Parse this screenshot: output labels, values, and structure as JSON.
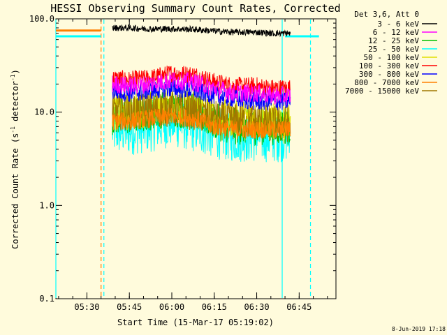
{
  "chart_data": {
    "type": "line",
    "title": "HESSI Observing Summary Count Rates, Corrected",
    "xlabel": "Start Time (15-Mar-17 05:19:02)",
    "ylabel_prefix": "Corrected Count Rate (s",
    "ylabel_exp": "-1",
    "ylabel_suffix": " detector",
    "ylabel_close": ")",
    "y_scale": "log",
    "ylim": [
      0.1,
      100.0
    ],
    "xlim": [
      "05:19:02",
      "06:58:00"
    ],
    "x_ticks": [
      "05:30",
      "05:45",
      "06:00",
      "06:15",
      "06:30",
      "06:45"
    ],
    "y_ticks": [
      "0.1",
      "1.0",
      "10.0",
      "100.0"
    ],
    "legend_title": "Det 3,6, Att 0",
    "legend_position": "top-right",
    "series": [
      {
        "name": "3 - 6 keV",
        "color": "#000000",
        "x": [
          "05:39",
          "05:45",
          "05:52",
          "06:00",
          "06:08",
          "06:15",
          "06:22",
          "06:30",
          "06:35",
          "06:42"
        ],
        "values": [
          80,
          80,
          78,
          78,
          77,
          74,
          72,
          72,
          70,
          70
        ]
      },
      {
        "name": "6 - 12 keV",
        "color": "#ff00ff",
        "x": [
          "05:39",
          "05:45",
          "05:52",
          "06:00",
          "06:08",
          "06:15",
          "06:22",
          "06:30",
          "06:35",
          "06:42"
        ],
        "values": [
          20,
          19,
          20,
          22,
          21,
          18,
          16,
          16,
          15,
          15
        ]
      },
      {
        "name": "12 - 25 keV",
        "color": "#00c000",
        "x": [
          "05:39",
          "05:45",
          "05:52",
          "06:00",
          "06:08",
          "06:15",
          "06:22",
          "06:30",
          "06:35",
          "06:42"
        ],
        "values": [
          9,
          9,
          10,
          11,
          10,
          8,
          7,
          7,
          7,
          7
        ]
      },
      {
        "name": "25 - 50 keV",
        "color": "#00ffff",
        "x": [
          "05:39",
          "05:45",
          "05:52",
          "06:00",
          "06:08",
          "06:15",
          "06:22",
          "06:30",
          "06:35",
          "06:42"
        ],
        "values": [
          6.5,
          6.5,
          7,
          8,
          7,
          6,
          5.5,
          5.5,
          5.5,
          5.5
        ]
      },
      {
        "name": "50 - 100 keV",
        "color": "#e0e000",
        "x": [
          "05:39",
          "05:45",
          "05:52",
          "06:00",
          "06:08",
          "06:15",
          "06:22",
          "06:30",
          "06:35",
          "06:42"
        ],
        "values": [
          10,
          10,
          11,
          12,
          11,
          9,
          8.5,
          8.5,
          8,
          8
        ]
      },
      {
        "name": "100 - 300 keV",
        "color": "#ff0000",
        "x": [
          "05:39",
          "05:45",
          "05:52",
          "06:00",
          "06:08",
          "06:15",
          "06:22",
          "06:30",
          "06:35",
          "06:42"
        ],
        "values": [
          23,
          22,
          23,
          26,
          25,
          21,
          19,
          19,
          18,
          18
        ]
      },
      {
        "name": "300 - 800 keV",
        "color": "#0000ff",
        "x": [
          "05:39",
          "05:45",
          "05:52",
          "06:00",
          "06:08",
          "06:15",
          "06:22",
          "06:30",
          "06:35",
          "06:42"
        ],
        "values": [
          17,
          16,
          17,
          18,
          17,
          15,
          14,
          13,
          13,
          13
        ]
      },
      {
        "name": "800 - 7000 keV",
        "color": "#ff8000",
        "x": [
          "05:39",
          "05:45",
          "05:52",
          "06:00",
          "06:08",
          "06:15",
          "06:22",
          "06:30",
          "06:35",
          "06:42"
        ],
        "values": [
          8,
          8,
          8.5,
          9,
          8.5,
          7,
          6.5,
          6.5,
          6.5,
          6.5
        ]
      },
      {
        "name": "7000 - 15000 keV",
        "color": "#a07800",
        "x": [
          "05:39",
          "05:45",
          "05:52",
          "06:00",
          "06:08",
          "06:15",
          "06:22",
          "06:30",
          "06:35",
          "06:42"
        ],
        "values": [
          10,
          10,
          10.5,
          11,
          10,
          8.5,
          8,
          8,
          7.5,
          7.5
        ]
      }
    ],
    "attenuator_lines": [
      {
        "color": "#ff8000",
        "x": [
          "05:19:02",
          "05:35"
        ],
        "value": 75
      },
      {
        "color": "#00ffff",
        "x": [
          "05:19:02",
          "05:35"
        ],
        "value": 65
      },
      {
        "color": "#00ffff",
        "x": [
          "06:40",
          "06:52"
        ],
        "value": 65
      }
    ],
    "markers": [
      {
        "kind": "dashed",
        "color": "#ff8000",
        "x": "05:35"
      },
      {
        "kind": "dashed",
        "color": "#00ffff",
        "x": "05:36"
      },
      {
        "kind": "solid",
        "color": "#00ffff",
        "x": "06:39"
      },
      {
        "kind": "dashed",
        "color": "#00ffff",
        "x": "06:49"
      },
      {
        "kind": "solid",
        "color": "#00ffff",
        "x": "05:19:02"
      }
    ]
  },
  "footer": {
    "timestamp": "8-Jun-2019 17:18"
  }
}
